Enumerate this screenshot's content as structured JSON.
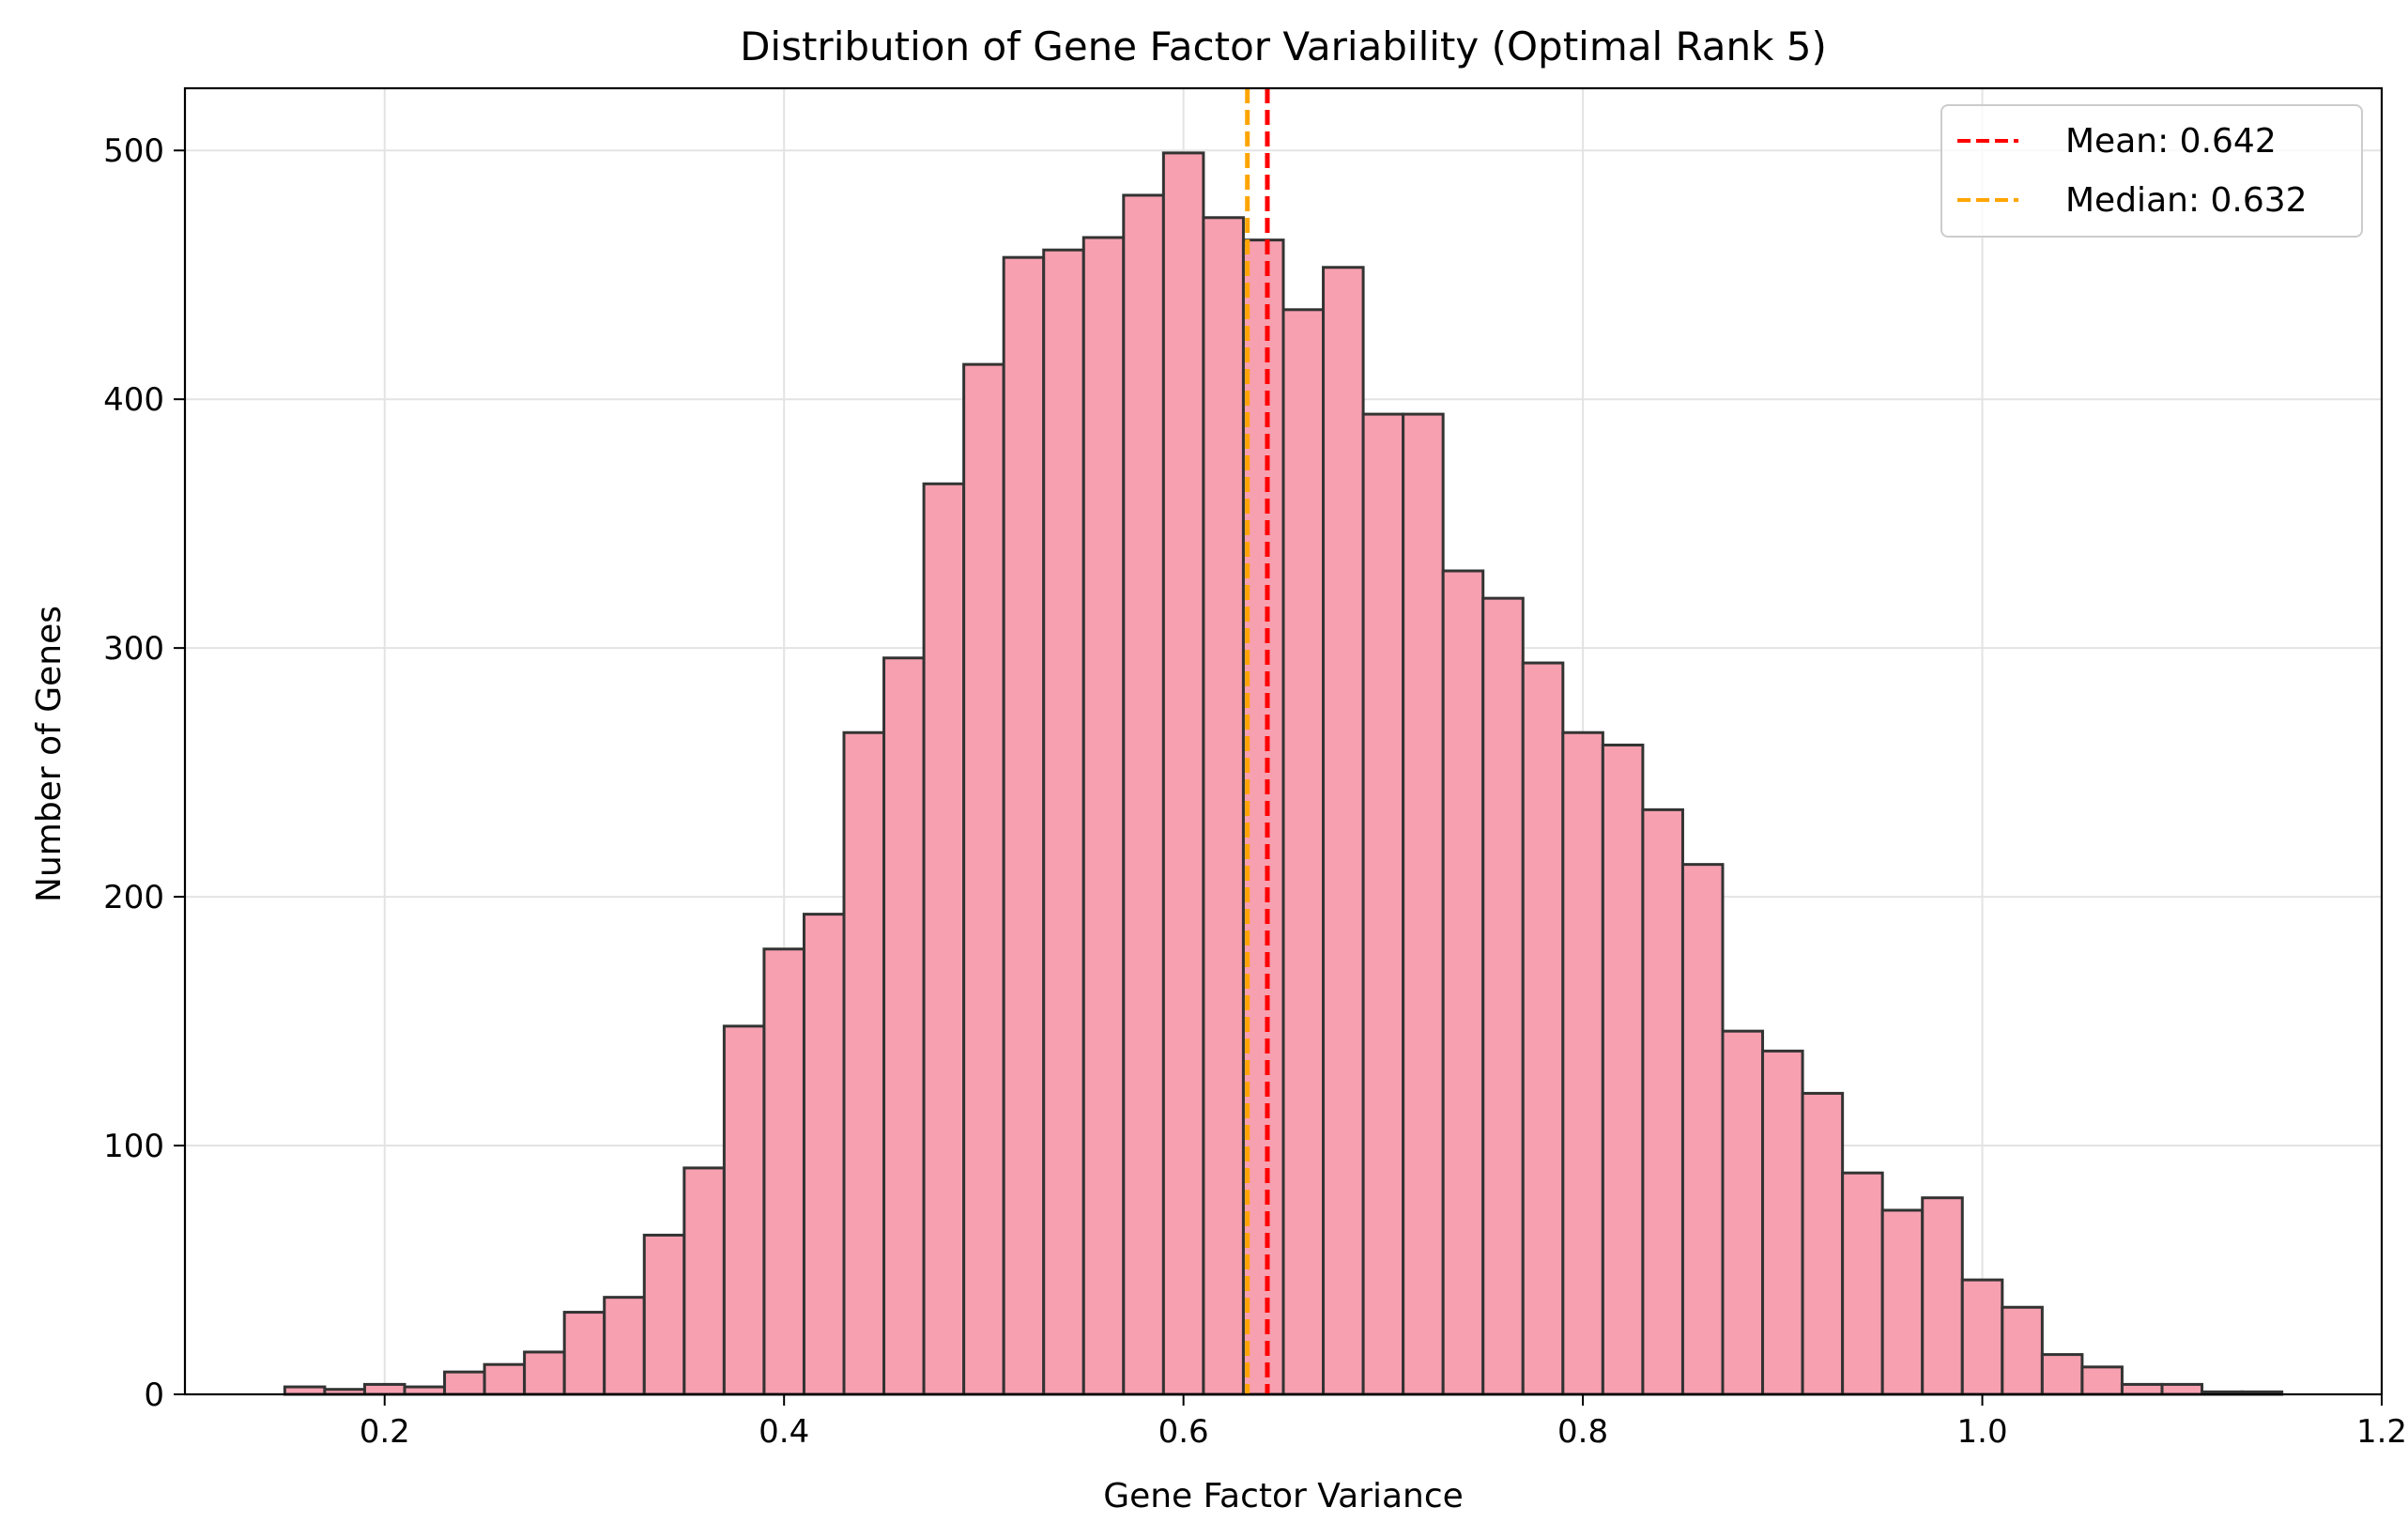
{
  "chart_data": {
    "type": "bar",
    "title": "Distribution of Gene Factor Variability (Optimal Rank 5)",
    "xlabel": "Gene Factor Variance",
    "ylabel": "Number of Genes",
    "xlim": [
      0.1,
      1.2
    ],
    "ylim": [
      0,
      525
    ],
    "xticks": [
      0.2,
      0.4,
      0.6,
      0.8,
      1.0,
      1.2
    ],
    "xtick_labels": [
      "0.2",
      "0.4",
      "0.6",
      "0.8",
      "1.0",
      "1.2"
    ],
    "yticks": [
      0,
      100,
      200,
      300,
      400,
      500
    ],
    "ytick_labels": [
      "0",
      "100",
      "200",
      "300",
      "400",
      "500"
    ],
    "grid": true,
    "bar_color": "#f7a0b0",
    "edge_color": "#333333",
    "bins": {
      "start": 0.15,
      "width": 0.02,
      "counts": [
        3,
        2,
        4,
        3,
        9,
        12,
        17,
        33,
        39,
        64,
        91,
        148,
        179,
        193,
        266,
        296,
        366,
        414,
        457,
        460,
        465,
        482,
        499,
        473,
        464,
        436,
        453,
        394,
        394,
        331,
        320,
        294,
        266,
        261,
        235,
        213,
        146,
        138,
        121,
        89,
        74,
        79,
        46,
        35,
        16,
        11,
        4,
        4,
        1,
        1
      ]
    },
    "reference_lines": [
      {
        "label": "Mean: 0.642",
        "x": 0.642,
        "color": "#ff0000",
        "style": "dashed"
      },
      {
        "label": "Median: 0.632",
        "x": 0.632,
        "color": "#ffa500",
        "style": "dashed"
      }
    ],
    "legend_position": "top-right"
  }
}
